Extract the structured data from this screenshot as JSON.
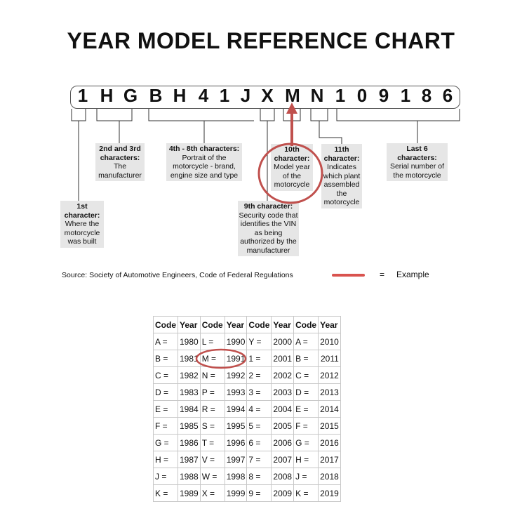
{
  "title": "YEAR MODEL REFERENCE CHART",
  "vin": [
    "1",
    "H",
    "G",
    "B",
    "H",
    "4",
    "1",
    "J",
    "X",
    "M",
    "N",
    "1",
    "0",
    "9",
    "1",
    "8",
    "6"
  ],
  "labels": {
    "first": {
      "head": "1st character:",
      "body": "Where the motorcycle was built"
    },
    "second": {
      "head": "2nd and 3rd characters:",
      "body": "The manufacturer"
    },
    "fourth": {
      "head": "4th - 8th characters:",
      "body": "Portrait of the motorcycle - brand, engine size and type"
    },
    "ninth": {
      "head": "9th character:",
      "body": "Security code that identifies the VIN as being authorized by the manufacturer"
    },
    "tenth": {
      "head": "10th character:",
      "body": "Model year of the motorcycle"
    },
    "eleventh": {
      "head": "11th character:",
      "body": "Indicates which plant assembled the motorcycle"
    },
    "last": {
      "head": "Last 6 characters:",
      "body": "Serial number of the motorcycle"
    }
  },
  "source": "Source:  Society of Automotive Engineers, Code of Federal Regulations",
  "legend": {
    "equals": "=",
    "label": "Example",
    "color": "#d9534f"
  },
  "highlight_color": "#c0504d",
  "table": {
    "headers": [
      "Code",
      "Year",
      "Code",
      "Year",
      "Code",
      "Year",
      "Code",
      "Year"
    ],
    "rows": [
      [
        "A =",
        "1980",
        "L =",
        "1990",
        "Y =",
        "2000",
        "A =",
        "2010"
      ],
      [
        "B =",
        "1981",
        "M =",
        "1991",
        "1 =",
        "2001",
        "B =",
        "2011"
      ],
      [
        "C =",
        "1982",
        "N =",
        "1992",
        "2 =",
        "2002",
        "C =",
        "2012"
      ],
      [
        "D =",
        "1983",
        "P =",
        "1993",
        "3 =",
        "2003",
        "D =",
        "2013"
      ],
      [
        "E =",
        "1984",
        "R =",
        "1994",
        "4 =",
        "2004",
        "E =",
        "2014"
      ],
      [
        "F =",
        "1985",
        "S =",
        "1995",
        "5 =",
        "2005",
        "F =",
        "2015"
      ],
      [
        "G =",
        "1986",
        "T =",
        "1996",
        "6 =",
        "2006",
        "G =",
        "2016"
      ],
      [
        "H =",
        "1987",
        "V =",
        "1997",
        "7 =",
        "2007",
        "H =",
        "2017"
      ],
      [
        "J =",
        "1988",
        "W =",
        "1998",
        "8 =",
        "2008",
        "J =",
        "2018"
      ],
      [
        "K =",
        "1989",
        "X =",
        "1999",
        "9 =",
        "2009",
        "K =",
        "2019"
      ]
    ]
  }
}
